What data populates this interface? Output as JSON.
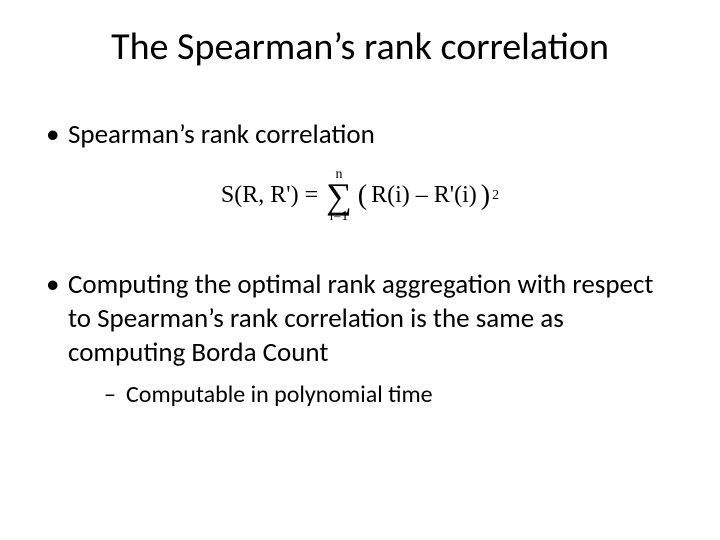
{
  "title": "The Spearman’s rank correlation",
  "bullets": {
    "b1": "Spearman’s rank correlation",
    "b2": "Computing the optimal rank aggregation with respect to Spearman’s rank correlation is the same as computing Borda Count",
    "b2_sub1": "Computable in polynomial time"
  },
  "formula": {
    "lhs": "S(R, R') =",
    "sum_top": "n",
    "sum_bottom": "i=1",
    "inner": "R(i) – R'(i)",
    "exponent": "2"
  },
  "style": {
    "background_color": "#ffffff",
    "text_color": "#000000",
    "title_fontsize": 38,
    "bullet_fontsize": 27,
    "sub_bullet_fontsize": 24,
    "formula_fontsize": 24,
    "font_family": "Calibri",
    "formula_font_family": "Times New Roman"
  }
}
